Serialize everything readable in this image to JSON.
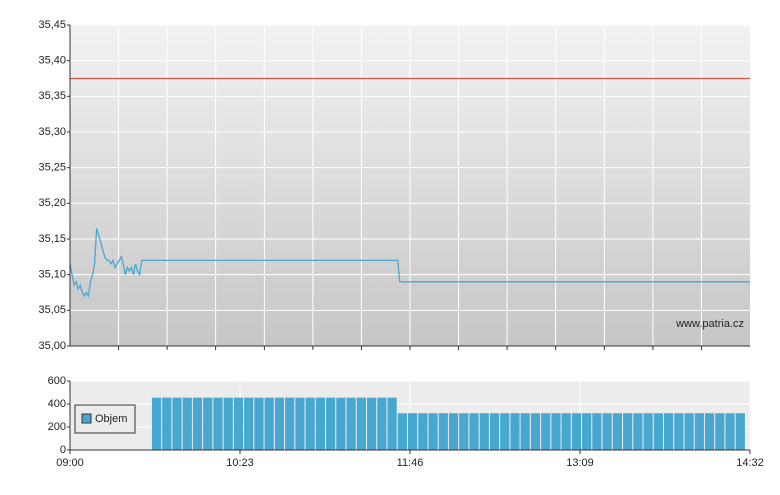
{
  "chart_data": [
    {
      "type": "line",
      "watermark": "www.patria.cz",
      "xlim": [
        540,
        872
      ],
      "xgrid": [
        563.7,
        587.4,
        611.1,
        634.9,
        658.6,
        682.3,
        706,
        729.7,
        753.4,
        777.1,
        800.9,
        824.6,
        848.3
      ],
      "ylim": [
        35.0,
        35.45
      ],
      "yticks": [
        {
          "value": 35.0,
          "label": "35,00"
        },
        {
          "value": 35.05,
          "label": "35,05"
        },
        {
          "value": 35.1,
          "label": "35,10"
        },
        {
          "value": 35.15,
          "label": "35,15"
        },
        {
          "value": 35.2,
          "label": "35,20"
        },
        {
          "value": 35.25,
          "label": "35,25"
        },
        {
          "value": 35.3,
          "label": "35,30"
        },
        {
          "value": 35.35,
          "label": "35,35"
        },
        {
          "value": 35.4,
          "label": "35,40"
        },
        {
          "value": 35.45,
          "label": "35,45"
        }
      ],
      "grid": true,
      "series": [
        {
          "color": "#4ba6cf",
          "x": [
            540,
            541,
            542,
            543,
            544,
            545,
            546,
            547,
            548,
            549,
            550,
            551,
            552,
            553,
            554,
            555,
            556,
            557,
            558,
            559,
            560,
            561,
            562,
            563,
            564,
            565,
            566,
            567,
            568,
            569,
            570,
            571,
            572,
            573,
            574,
            575,
            700,
            701,
            872
          ],
          "values": [
            35.115,
            35.1,
            35.085,
            35.09,
            35.08,
            35.085,
            35.075,
            35.07,
            35.075,
            35.07,
            35.09,
            35.1,
            35.115,
            35.165,
            35.155,
            35.145,
            35.135,
            35.125,
            35.12,
            35.12,
            35.115,
            35.12,
            35.11,
            35.115,
            35.12,
            35.125,
            35.115,
            35.1,
            35.11,
            35.105,
            35.11,
            35.1,
            35.115,
            35.105,
            35.1,
            35.12,
            35.12,
            35.09,
            35.09
          ]
        },
        {
          "color": "#d9534a",
          "x": [
            540,
            872
          ],
          "values": [
            35.375,
            35.375
          ]
        }
      ]
    },
    {
      "type": "bar",
      "legend": "Objem",
      "color": "#48a7ce",
      "bar_width": 4,
      "xlim": [
        540,
        872
      ],
      "xticks": [
        {
          "value": 540,
          "label": "09:00"
        },
        {
          "value": 623,
          "label": "10:23"
        },
        {
          "value": 706,
          "label": "11:46"
        },
        {
          "value": 789,
          "label": "13:09"
        },
        {
          "value": 872,
          "label": "14:32"
        }
      ],
      "ylim": [
        0,
        600
      ],
      "yticks": [
        0,
        200,
        400,
        600
      ],
      "grid": true,
      "x": [
        580,
        585,
        590,
        595,
        600,
        605,
        610,
        615,
        620,
        625,
        630,
        635,
        640,
        645,
        650,
        655,
        660,
        665,
        670,
        675,
        680,
        685,
        690,
        695,
        700,
        705,
        710,
        715,
        720,
        725,
        730,
        735,
        740,
        745,
        750,
        755,
        760,
        765,
        770,
        775,
        780,
        785,
        790,
        795,
        800,
        805,
        810,
        815,
        820,
        825,
        830,
        835,
        840,
        845,
        850,
        855,
        860,
        865
      ],
      "values": [
        455,
        455,
        455,
        455,
        455,
        455,
        455,
        455,
        455,
        455,
        455,
        455,
        455,
        455,
        455,
        455,
        455,
        455,
        455,
        455,
        455,
        455,
        455,
        455,
        320,
        320,
        320,
        320,
        320,
        320,
        320,
        320,
        320,
        320,
        320,
        320,
        320,
        320,
        320,
        320,
        320,
        320,
        320,
        320,
        320,
        320,
        320,
        320,
        320,
        320,
        320,
        320,
        320,
        320,
        320,
        320,
        320,
        320
      ]
    }
  ]
}
